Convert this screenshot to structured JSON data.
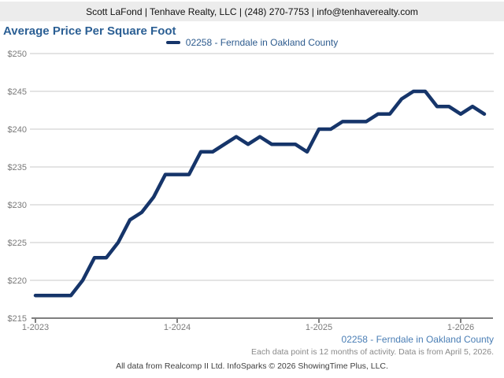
{
  "header": {
    "contact_line": "Scott LaFond | Tenhave Realty, LLC | (248) 270-7753 | info@tenhaverealty.com"
  },
  "title": "Average Price Per Square Foot",
  "legend": {
    "label": "02258 - Ferndale in Oakland County"
  },
  "footer": {
    "series_label": "02258 - Ferndale in Oakland County",
    "data_note": "Each data point is 12 months of activity. Data is from April 5, 2026.",
    "attribution": "All data from Realcomp II Ltd. InfoSparks © 2026 ShowingTime Plus, LLC."
  },
  "colors": {
    "line": "#16356a",
    "title_text": "#2b5f94",
    "legend_text": "#2d5b8e",
    "footer_series_text": "#4a7eb5",
    "grid": "#c8c8c8",
    "axis": "#7f7f7f",
    "tick_text": "#7a7a7a",
    "header_bg": "#ececec"
  },
  "chart_data": {
    "type": "line",
    "title": "Average Price Per Square Foot",
    "ylabel": "",
    "xlabel": "",
    "ylim": [
      215,
      250
    ],
    "grid": true,
    "legend_position": "top-center",
    "y_ticks": [
      215,
      220,
      225,
      230,
      235,
      240,
      245,
      250
    ],
    "y_tick_prefix": "$",
    "x_tick_labels": [
      "1-2023",
      "1-2024",
      "1-2025",
      "1-2026"
    ],
    "x": [
      "1-2023",
      "2-2023",
      "3-2023",
      "4-2023",
      "5-2023",
      "6-2023",
      "7-2023",
      "8-2023",
      "9-2023",
      "10-2023",
      "11-2023",
      "12-2023",
      "1-2024",
      "2-2024",
      "3-2024",
      "4-2024",
      "5-2024",
      "6-2024",
      "7-2024",
      "8-2024",
      "9-2024",
      "10-2024",
      "11-2024",
      "12-2024",
      "1-2025",
      "2-2025",
      "3-2025",
      "4-2025",
      "5-2025",
      "6-2025",
      "7-2025",
      "8-2025",
      "9-2025",
      "10-2025",
      "11-2025",
      "12-2025",
      "1-2026",
      "2-2026",
      "3-2026"
    ],
    "series": [
      {
        "name": "02258 - Ferndale in Oakland County",
        "values": [
          218,
          218,
          218,
          218,
          220,
          223,
          223,
          225,
          228,
          229,
          231,
          234,
          234,
          234,
          237,
          237,
          238,
          239,
          238,
          239,
          238,
          238,
          238,
          237,
          240,
          240,
          241,
          241,
          241,
          242,
          242,
          244,
          245,
          245,
          243,
          243,
          242,
          243,
          242
        ]
      }
    ]
  }
}
